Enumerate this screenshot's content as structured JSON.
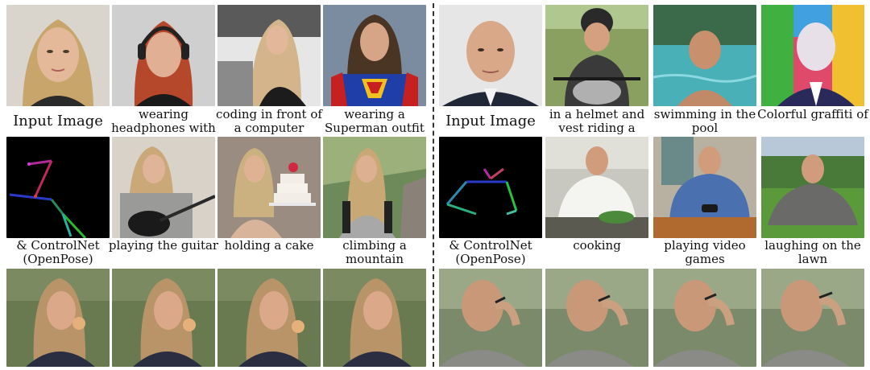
{
  "left": {
    "row1": [
      "Input Image",
      "wearing headphones with red hair",
      "coding in front of a computer",
      "wearing a Superman outfit"
    ],
    "row2": [
      "& ControlNet (OpenPose)",
      "playing the guitar",
      "holding a cake",
      "climbing a mountain"
    ]
  },
  "right": {
    "row1": [
      "Input Image",
      "in a helmet and vest riding a motorcycle",
      "swimming in the pool",
      "Colorful graffiti of"
    ],
    "row2": [
      "& ControlNet (OpenPose)",
      "cooking",
      "playing video games",
      "laughing on the lawn"
    ]
  }
}
